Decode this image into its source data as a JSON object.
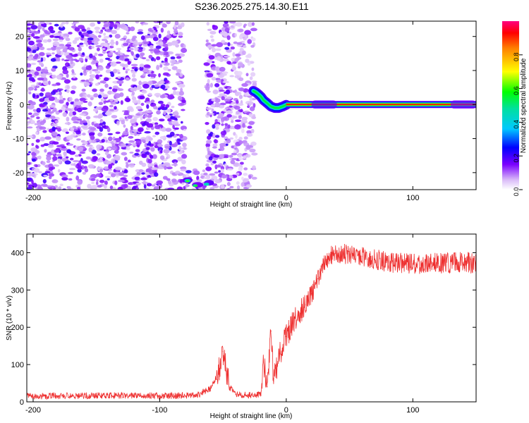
{
  "figure_title": "S236.2025.275.14.30.E11",
  "chart_data": [
    {
      "type": "heatmap",
      "title": "",
      "xlabel": "Height of straight line (km)",
      "ylabel": "Frequency (Hz)",
      "xlim": [
        -205,
        150
      ],
      "ylim": [
        -25,
        24.5
      ],
      "xticks": [
        -200,
        -100,
        0,
        100
      ],
      "yticks": [
        -20,
        -10,
        0,
        10,
        20
      ],
      "colorbar": {
        "label": "Normalized spectral amplitude",
        "range": [
          0,
          1
        ],
        "ticks": [
          0.0,
          0.2,
          0.4,
          0.6,
          0.8
        ]
      },
      "regions": [
        {
          "name": "scattered low-amplitude noise",
          "x_range": [
            -205,
            -25
          ],
          "f_range": [
            -25,
            24.5
          ],
          "amplitude": 0.1
        },
        {
          "name": "gap without signal",
          "x_range": [
            -80,
            -63
          ],
          "f_range": [
            -19,
            24.5
          ],
          "amplitude": 0.0
        },
        {
          "name": "low-frequency blob",
          "x_range": [
            -80,
            -55
          ],
          "f_range": [
            -25,
            -21
          ],
          "amplitude": 0.5
        },
        {
          "name": "signal curve",
          "x_range": [
            -25,
            0
          ],
          "f_range": [
            -1,
            4
          ],
          "amplitude": 0.45
        },
        {
          "name": "carrier line",
          "x_range": [
            0,
            150
          ],
          "f_range": [
            -0.5,
            0.5
          ],
          "amplitude": 0.9
        }
      ]
    },
    {
      "type": "line",
      "title": "",
      "xlabel": "Height of straight line (km)",
      "ylabel": "SNR (10 * v/v)",
      "xlim": [
        -205,
        150
      ],
      "ylim": [
        0,
        450
      ],
      "xticks": [
        -200,
        -100,
        0,
        100
      ],
      "yticks": [
        0,
        100,
        200,
        300,
        400
      ],
      "series": [
        {
          "name": "SNR",
          "color": "#ee3030",
          "x": [
            -205,
            -150,
            -100,
            -70,
            -60,
            -55,
            -50,
            -45,
            -40,
            -30,
            -20,
            -18,
            -15,
            -12,
            -10,
            -5,
            0,
            5,
            10,
            15,
            20,
            25,
            30,
            35,
            40,
            50,
            60,
            80,
            100,
            120,
            140,
            150
          ],
          "y": [
            15,
            17,
            16,
            18,
            35,
            60,
            135,
            40,
            20,
            18,
            18,
            110,
            40,
            190,
            55,
            130,
            175,
            210,
            240,
            260,
            290,
            330,
            370,
            395,
            400,
            395,
            390,
            375,
            370,
            372,
            375,
            370
          ]
        }
      ]
    }
  ]
}
